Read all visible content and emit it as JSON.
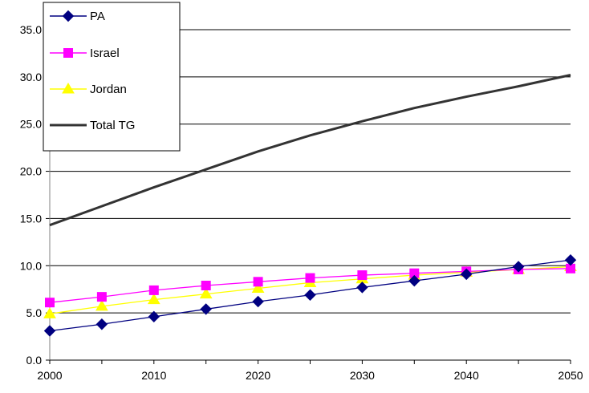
{
  "chart_data": {
    "type": "line",
    "title": "",
    "xlabel": "",
    "ylabel": "",
    "x": [
      2000,
      2005,
      2010,
      2015,
      2020,
      2025,
      2030,
      2035,
      2040,
      2045,
      2050
    ],
    "xlim": [
      2000,
      2050
    ],
    "ylim": [
      0,
      35
    ],
    "x_ticks": [
      "2000",
      "2010",
      "2020",
      "2030",
      "2040",
      "2050"
    ],
    "y_ticks": [
      "0.0",
      "5.0",
      "10.0",
      "15.0",
      "20.0",
      "25.0",
      "30.0",
      "35.0"
    ],
    "grid": "horizontal",
    "legend_position": "top-left",
    "series": [
      {
        "name": "PA",
        "color": "#000080",
        "marker": "diamond",
        "values": [
          3.1,
          3.8,
          4.6,
          5.4,
          6.2,
          6.9,
          7.7,
          8.4,
          9.1,
          9.9,
          10.6
        ]
      },
      {
        "name": "Israel",
        "color": "#ff00ff",
        "marker": "square",
        "values": [
          6.1,
          6.7,
          7.4,
          7.9,
          8.3,
          8.7,
          9.0,
          9.2,
          9.4,
          9.6,
          9.7
        ]
      },
      {
        "name": "Jordan",
        "color": "#ffff00",
        "marker": "triangle",
        "values": [
          4.9,
          5.7,
          6.4,
          7.0,
          7.6,
          8.2,
          8.6,
          9.0,
          9.3,
          9.6,
          9.9
        ]
      },
      {
        "name": "Total TG",
        "color": "#333333",
        "marker": "none",
        "values": [
          14.3,
          16.3,
          18.3,
          20.2,
          22.1,
          23.8,
          25.3,
          26.7,
          27.9,
          29.0,
          30.2
        ]
      }
    ]
  }
}
